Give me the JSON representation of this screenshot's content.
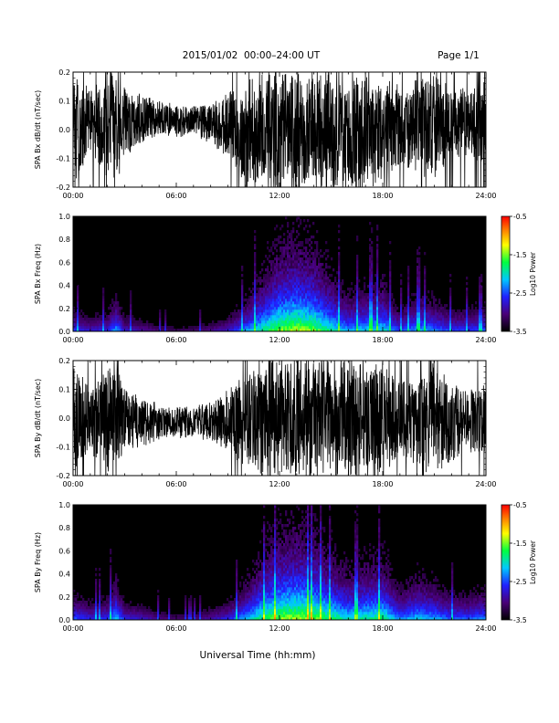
{
  "header": {
    "title": "2015/01/02  00:00–24:00 UT",
    "page": "Page 1/1"
  },
  "footer": {
    "xlabel": "Universal Time (hh:mm)"
  },
  "colorbar": {
    "label": "Log10 Power",
    "ticks": [
      "-0.5",
      "-1.5",
      "-2.5",
      "-3.5"
    ],
    "range": [
      -3.5,
      -0.5
    ],
    "colors": [
      "#000000",
      "#4a0078",
      "#2020ff",
      "#00c8ff",
      "#00ff40",
      "#ffff00",
      "#ff8000",
      "#ff0000"
    ]
  },
  "chart_data": [
    {
      "type": "line",
      "ylabel": "SPA Bx dB/dt (nT/sec)",
      "ylim": [
        -0.2,
        0.2
      ],
      "yticks": [
        "0.2",
        "0.1",
        "0.0",
        "-0.1",
        "-0.2"
      ],
      "xticks": [
        "00:00",
        "06:00",
        "12:00",
        "18:00",
        "24:00"
      ],
      "x_range_hours": [
        0,
        24
      ],
      "series_envelope": {
        "x_hours": [
          0,
          1,
          2,
          2.5,
          3,
          4,
          5,
          6,
          7,
          8,
          9,
          10,
          11,
          12,
          13,
          14,
          15,
          16,
          17,
          18,
          19,
          20,
          21,
          22,
          23,
          24
        ],
        "upper": [
          0.2,
          0.15,
          0.2,
          0.2,
          0.15,
          0.13,
          0.1,
          0.09,
          0.09,
          0.1,
          0.13,
          0.18,
          0.2,
          0.2,
          0.2,
          0.2,
          0.2,
          0.2,
          0.2,
          0.2,
          0.15,
          0.18,
          0.2,
          0.15,
          0.15,
          0.18
        ],
        "lower": [
          -0.2,
          -0.1,
          -0.2,
          -0.2,
          -0.1,
          -0.05,
          -0.02,
          -0.03,
          -0.02,
          -0.05,
          -0.1,
          -0.2,
          -0.2,
          -0.2,
          -0.2,
          -0.2,
          -0.2,
          -0.2,
          -0.2,
          -0.2,
          -0.12,
          -0.15,
          -0.2,
          -0.1,
          -0.1,
          -0.15
        ]
      }
    },
    {
      "type": "heatmap",
      "ylabel": "SPA Bx Freq (Hz)",
      "ylim": [
        0,
        1.0
      ],
      "yticks": [
        "1.0",
        "0.8",
        "0.6",
        "0.4",
        "0.2",
        "0.0"
      ],
      "xticks": [
        "00:00",
        "06:00",
        "12:00",
        "18:00",
        "24:00"
      ],
      "x_range_hours": [
        0,
        24
      ],
      "activity_profile": {
        "x_hours": [
          0,
          1,
          2,
          2.5,
          3,
          4,
          5,
          6,
          7,
          8,
          9,
          10,
          11,
          12,
          13,
          14,
          15,
          16,
          17,
          18,
          19,
          20,
          21,
          22,
          23,
          24
        ],
        "intensity": [
          0.45,
          0.35,
          0.4,
          0.6,
          0.35,
          0.3,
          0.2,
          0.15,
          0.18,
          0.25,
          0.35,
          0.55,
          0.75,
          0.9,
          0.95,
          0.9,
          0.75,
          0.6,
          0.65,
          0.7,
          0.45,
          0.6,
          0.55,
          0.45,
          0.45,
          0.5
        ]
      }
    },
    {
      "type": "line",
      "ylabel": "SPA By dB/dt (nT/sec)",
      "ylim": [
        -0.2,
        0.2
      ],
      "yticks": [
        "0.2",
        "0.1",
        "0.0",
        "-0.1",
        "-0.2"
      ],
      "xticks": [
        "00:00",
        "06:00",
        "12:00",
        "18:00",
        "24:00"
      ],
      "x_range_hours": [
        0,
        24
      ],
      "series_envelope": {
        "x_hours": [
          0,
          1,
          2,
          2.5,
          3,
          4,
          5,
          6,
          7,
          8,
          9,
          10,
          11,
          12,
          13,
          14,
          15,
          16,
          17,
          18,
          19,
          20,
          21,
          22,
          23,
          24
        ],
        "upper": [
          0.2,
          0.1,
          0.2,
          0.2,
          0.1,
          0.08,
          0.05,
          0.04,
          0.04,
          0.06,
          0.1,
          0.15,
          0.2,
          0.2,
          0.2,
          0.2,
          0.2,
          0.2,
          0.2,
          0.2,
          0.12,
          0.15,
          0.2,
          0.12,
          0.1,
          0.12
        ],
        "lower": [
          -0.2,
          -0.12,
          -0.2,
          -0.2,
          -0.12,
          -0.1,
          -0.08,
          -0.07,
          -0.07,
          -0.08,
          -0.12,
          -0.18,
          -0.2,
          -0.2,
          -0.2,
          -0.2,
          -0.2,
          -0.2,
          -0.2,
          -0.2,
          -0.15,
          -0.18,
          -0.2,
          -0.15,
          -0.12,
          -0.15
        ]
      }
    },
    {
      "type": "heatmap",
      "ylabel": "SPA By Freq (Hz)",
      "ylim": [
        0,
        1.0
      ],
      "yticks": [
        "1.0",
        "0.8",
        "0.6",
        "0.4",
        "0.2",
        "0.0"
      ],
      "xticks": [
        "00:00",
        "06:00",
        "12:00",
        "18:00",
        "24:00"
      ],
      "x_range_hours": [
        0,
        24
      ],
      "activity_profile": {
        "x_hours": [
          0,
          1,
          2,
          2.5,
          3,
          4,
          5,
          6,
          7,
          8,
          9,
          10,
          11,
          12,
          13,
          14,
          15,
          16,
          17,
          18,
          19,
          20,
          21,
          22,
          23,
          24
        ],
        "intensity": [
          0.5,
          0.4,
          0.45,
          0.65,
          0.4,
          0.35,
          0.25,
          0.2,
          0.22,
          0.3,
          0.4,
          0.6,
          0.8,
          0.92,
          0.95,
          0.9,
          0.8,
          0.7,
          0.75,
          0.78,
          0.55,
          0.65,
          0.6,
          0.5,
          0.5,
          0.55
        ]
      }
    }
  ]
}
